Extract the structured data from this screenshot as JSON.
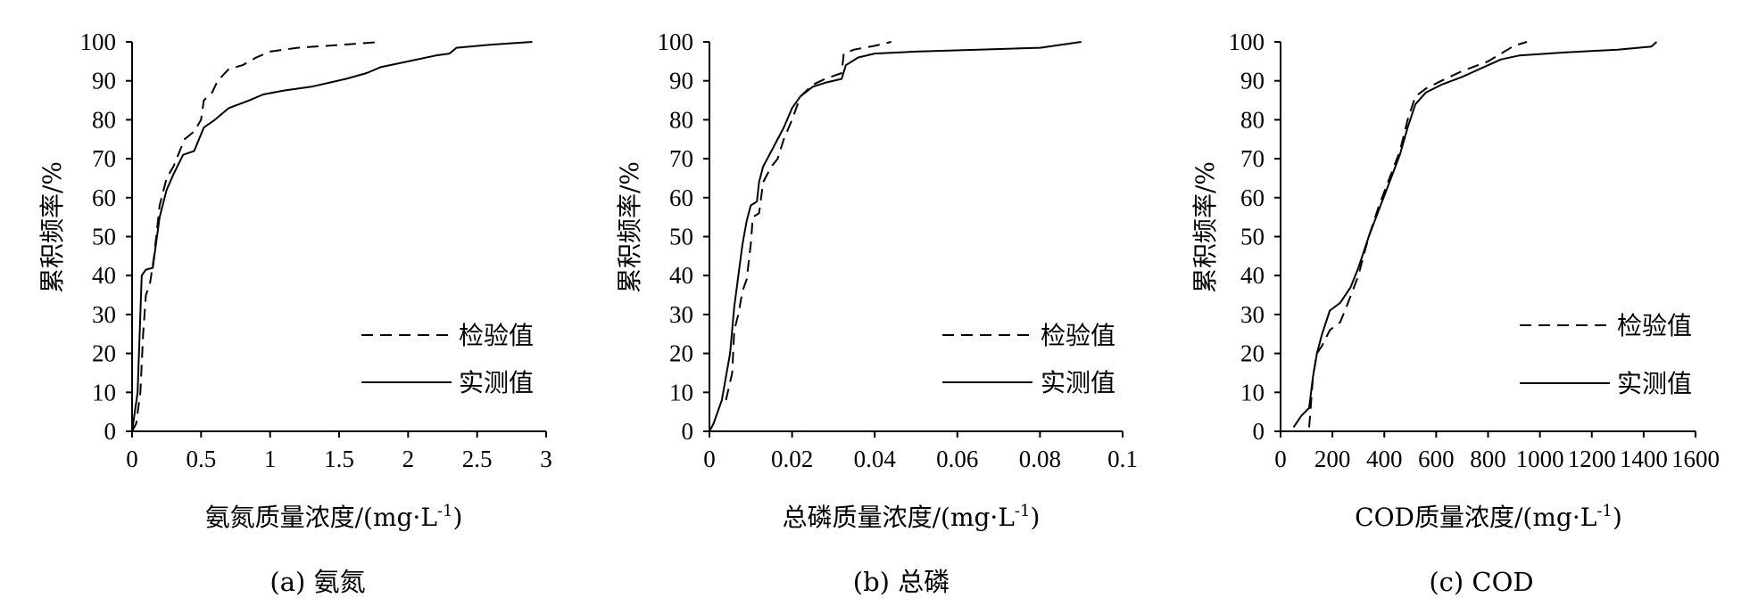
{
  "figure": {
    "line_color": "#000000",
    "background": "#ffffff"
  },
  "legend": {
    "test_label": "检验值",
    "measured_label": "实测值"
  },
  "chart_data": [
    {
      "type": "line",
      "caption": "(a) 氨氮",
      "xlabel": "氨氮质量浓度/(mg·L",
      "xlabel_sup": "-1",
      "xlabel_end": ")",
      "ylabel": "累积频率/%",
      "xlim": [
        0,
        3
      ],
      "ylim": [
        0,
        100
      ],
      "x_ticks": [
        "0",
        "0.5",
        "1",
        "1.5",
        "2",
        "2.5",
        "3"
      ],
      "y_ticks": [
        "0",
        "10",
        "20",
        "30",
        "40",
        "50",
        "60",
        "70",
        "80",
        "90",
        "100"
      ],
      "series": [
        {
          "name": "检验值",
          "style": "dashed",
          "points": [
            [
              0,
              0
            ],
            [
              0.03,
              2
            ],
            [
              0.06,
              10
            ],
            [
              0.08,
              25
            ],
            [
              0.1,
              35
            ],
            [
              0.13,
              38
            ],
            [
              0.16,
              45
            ],
            [
              0.2,
              58
            ],
            [
              0.25,
              65
            ],
            [
              0.3,
              68
            ],
            [
              0.38,
              75
            ],
            [
              0.45,
              77
            ],
            [
              0.5,
              80
            ],
            [
              0.52,
              85
            ],
            [
              0.58,
              87
            ],
            [
              0.62,
              90
            ],
            [
              0.7,
              93
            ],
            [
              0.8,
              94
            ],
            [
              0.9,
              96
            ],
            [
              1.0,
              97.5
            ],
            [
              1.2,
              98.5
            ],
            [
              1.5,
              99.2
            ],
            [
              1.8,
              100
            ]
          ]
        },
        {
          "name": "实测值",
          "style": "solid",
          "points": [
            [
              0,
              0
            ],
            [
              0.02,
              5
            ],
            [
              0.04,
              10
            ],
            [
              0.07,
              40
            ],
            [
              0.1,
              41.5
            ],
            [
              0.15,
              42
            ],
            [
              0.2,
              55
            ],
            [
              0.25,
              62
            ],
            [
              0.3,
              66
            ],
            [
              0.37,
              71
            ],
            [
              0.45,
              72
            ],
            [
              0.52,
              78
            ],
            [
              0.6,
              80
            ],
            [
              0.7,
              83
            ],
            [
              0.85,
              85
            ],
            [
              0.95,
              86.5
            ],
            [
              1.1,
              87.5
            ],
            [
              1.3,
              88.5
            ],
            [
              1.55,
              90.5
            ],
            [
              1.7,
              92
            ],
            [
              1.8,
              93.5
            ],
            [
              2.0,
              95
            ],
            [
              2.2,
              96.5
            ],
            [
              2.3,
              97
            ],
            [
              2.35,
              98.5
            ],
            [
              2.6,
              99.3
            ],
            [
              2.9,
              100
            ]
          ]
        }
      ]
    },
    {
      "type": "line",
      "caption": "(b) 总磷",
      "xlabel": "总磷质量浓度/(mg·L",
      "xlabel_sup": "-1",
      "xlabel_end": ")",
      "ylabel": "累积频率/%",
      "xlim": [
        0,
        0.1
      ],
      "ylim": [
        0,
        100
      ],
      "x_ticks": [
        "0",
        "0.02",
        "0.04",
        "0.06",
        "0.08",
        "0.1"
      ],
      "y_ticks": [
        "0",
        "10",
        "20",
        "30",
        "40",
        "50",
        "60",
        "70",
        "80",
        "90",
        "100"
      ],
      "series": [
        {
          "name": "检验值",
          "style": "dashed",
          "points": [
            [
              0.004,
              8
            ],
            [
              0.0055,
              15
            ],
            [
              0.006,
              26
            ],
            [
              0.007,
              30
            ],
            [
              0.008,
              36
            ],
            [
              0.009,
              39
            ],
            [
              0.01,
              48
            ],
            [
              0.0105,
              55
            ],
            [
              0.012,
              56
            ],
            [
              0.013,
              64
            ],
            [
              0.015,
              68
            ],
            [
              0.0165,
              70
            ],
            [
              0.018,
              75
            ],
            [
              0.02,
              80
            ],
            [
              0.022,
              86
            ],
            [
              0.025,
              89
            ],
            [
              0.028,
              90.5
            ],
            [
              0.032,
              92
            ],
            [
              0.0325,
              97
            ],
            [
              0.035,
              98
            ],
            [
              0.04,
              99
            ],
            [
              0.044,
              100
            ]
          ]
        },
        {
          "name": "实测值",
          "style": "solid",
          "points": [
            [
              0,
              0
            ],
            [
              0.001,
              2
            ],
            [
              0.003,
              8
            ],
            [
              0.005,
              20
            ],
            [
              0.006,
              32
            ],
            [
              0.007,
              40
            ],
            [
              0.008,
              48
            ],
            [
              0.009,
              54
            ],
            [
              0.01,
              58
            ],
            [
              0.0115,
              59
            ],
            [
              0.012,
              64
            ],
            [
              0.013,
              68
            ],
            [
              0.015,
              72
            ],
            [
              0.018,
              78
            ],
            [
              0.02,
              83
            ],
            [
              0.022,
              86
            ],
            [
              0.025,
              88.5
            ],
            [
              0.028,
              89.5
            ],
            [
              0.032,
              90.5
            ],
            [
              0.033,
              94
            ],
            [
              0.036,
              96
            ],
            [
              0.04,
              97
            ],
            [
              0.05,
              97.5
            ],
            [
              0.065,
              98
            ],
            [
              0.08,
              98.5
            ],
            [
              0.09,
              100
            ]
          ]
        }
      ]
    },
    {
      "type": "line",
      "caption": "(c) COD",
      "xlabel": "COD质量浓度/(mg·L",
      "xlabel_sup": "-1",
      "xlabel_end": ")",
      "ylabel": "累积频率/%",
      "xlim": [
        0,
        1600
      ],
      "ylim": [
        0,
        100
      ],
      "x_ticks": [
        "0",
        "200",
        "400",
        "600",
        "800",
        "1000",
        "1200",
        "1400",
        "1600"
      ],
      "y_ticks": [
        "0",
        "10",
        "20",
        "30",
        "40",
        "50",
        "60",
        "70",
        "80",
        "90",
        "100"
      ],
      "series": [
        {
          "name": "检验值",
          "style": "dashed",
          "points": [
            [
              110,
              1
            ],
            [
              115,
              5
            ],
            [
              125,
              14
            ],
            [
              140,
              20
            ],
            [
              160,
              22
            ],
            [
              190,
              26
            ],
            [
              230,
              28
            ],
            [
              260,
              33
            ],
            [
              300,
              40
            ],
            [
              340,
              50
            ],
            [
              380,
              58
            ],
            [
              420,
              65
            ],
            [
              460,
              72
            ],
            [
              490,
              80
            ],
            [
              520,
              86
            ],
            [
              560,
              88
            ],
            [
              620,
              90
            ],
            [
              700,
              92.5
            ],
            [
              800,
              95
            ],
            [
              850,
              97
            ],
            [
              900,
              99
            ],
            [
              950,
              100
            ]
          ]
        },
        {
          "name": "实测值",
          "style": "solid",
          "points": [
            [
              50,
              1
            ],
            [
              80,
              4
            ],
            [
              110,
              6
            ],
            [
              125,
              14
            ],
            [
              140,
              20
            ],
            [
              160,
              25
            ],
            [
              190,
              31
            ],
            [
              230,
              33
            ],
            [
              270,
              37
            ],
            [
              300,
              42
            ],
            [
              340,
              50
            ],
            [
              380,
              57
            ],
            [
              420,
              64
            ],
            [
              460,
              71
            ],
            [
              490,
              78
            ],
            [
              520,
              84
            ],
            [
              560,
              87
            ],
            [
              620,
              89
            ],
            [
              700,
              91
            ],
            [
              800,
              94
            ],
            [
              850,
              95.5
            ],
            [
              920,
              96.5
            ],
            [
              1100,
              97.3
            ],
            [
              1300,
              98
            ],
            [
              1430,
              98.8
            ],
            [
              1450,
              100
            ]
          ]
        }
      ]
    }
  ]
}
